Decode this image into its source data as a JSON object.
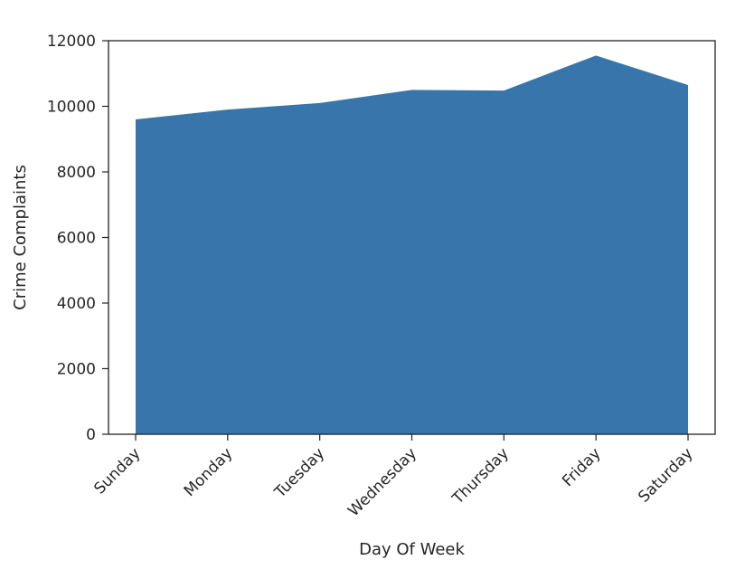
{
  "chart_data": {
    "type": "area",
    "title": "",
    "xlabel": "Day Of Week",
    "ylabel": "Crime Complaints",
    "categories": [
      "Sunday",
      "Monday",
      "Tuesday",
      "Wednesday",
      "Thursday",
      "Friday",
      "Saturday"
    ],
    "values": [
      9600,
      9900,
      10100,
      10500,
      10480,
      11550,
      10650
    ],
    "ylim": [
      0,
      12000
    ],
    "yticks": [
      0,
      2000,
      4000,
      6000,
      8000,
      10000,
      12000
    ],
    "ytick_labels": [
      "0",
      "2000",
      "4000",
      "6000",
      "8000",
      "10000",
      "12000"
    ],
    "grid": false,
    "legend": "none",
    "fill_color": "#3775aa"
  }
}
